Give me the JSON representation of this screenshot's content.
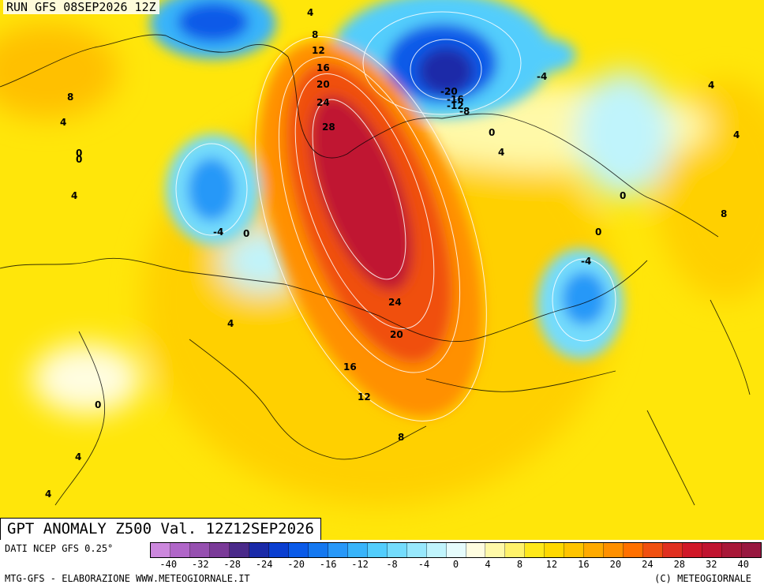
{
  "header": {
    "run": "RUN GFS 08SEP2026 12Z"
  },
  "title": "GPT ANOMALY Z500 Val. 12Z12SEP2026",
  "footer": {
    "source": "DATI NCEP GFS 0.25°",
    "credits": "MTG-GFS - ELABORAZIONE WWW.METEOGIORNALE.IT",
    "copyright": "(C) METEOGIORNALE"
  },
  "legend": {
    "colors": [
      "#cc88dd",
      "#b066c8",
      "#9650b0",
      "#7a3a98",
      "#4a2a8a",
      "#1a2aa8",
      "#0a3ed0",
      "#0a5ae8",
      "#1478f0",
      "#2898f8",
      "#38b4fa",
      "#52cdfc",
      "#74dcfc",
      "#98e8fc",
      "#c0f4fc",
      "#e6fcfc",
      "#fffde0",
      "#fff9a8",
      "#fff26a",
      "#ffe81a",
      "#ffd800",
      "#ffc400",
      "#ffaa00",
      "#ff9000",
      "#ff7000",
      "#f05010",
      "#e03020",
      "#d01828",
      "#c01430",
      "#a81838",
      "#981840"
    ],
    "ticks": [
      "-40",
      "-32",
      "-28",
      "-24",
      "-20",
      "-16",
      "-12",
      "-8",
      "-4",
      "0",
      "4",
      "8",
      "12",
      "16",
      "20",
      "24",
      "28",
      "32",
      "40"
    ]
  },
  "map": {
    "contour_labels": [
      "4",
      "8",
      "12",
      "16",
      "20",
      "24",
      "28",
      "8",
      "4",
      "0",
      "0",
      "4",
      "-4",
      "0",
      "4",
      "0",
      "-20",
      "-16",
      "-12",
      "-8",
      "-4",
      "0",
      "4",
      "4",
      "4",
      "0",
      "8",
      "0",
      "-4",
      "24",
      "20",
      "16",
      "12",
      "8",
      "4",
      "4"
    ]
  }
}
